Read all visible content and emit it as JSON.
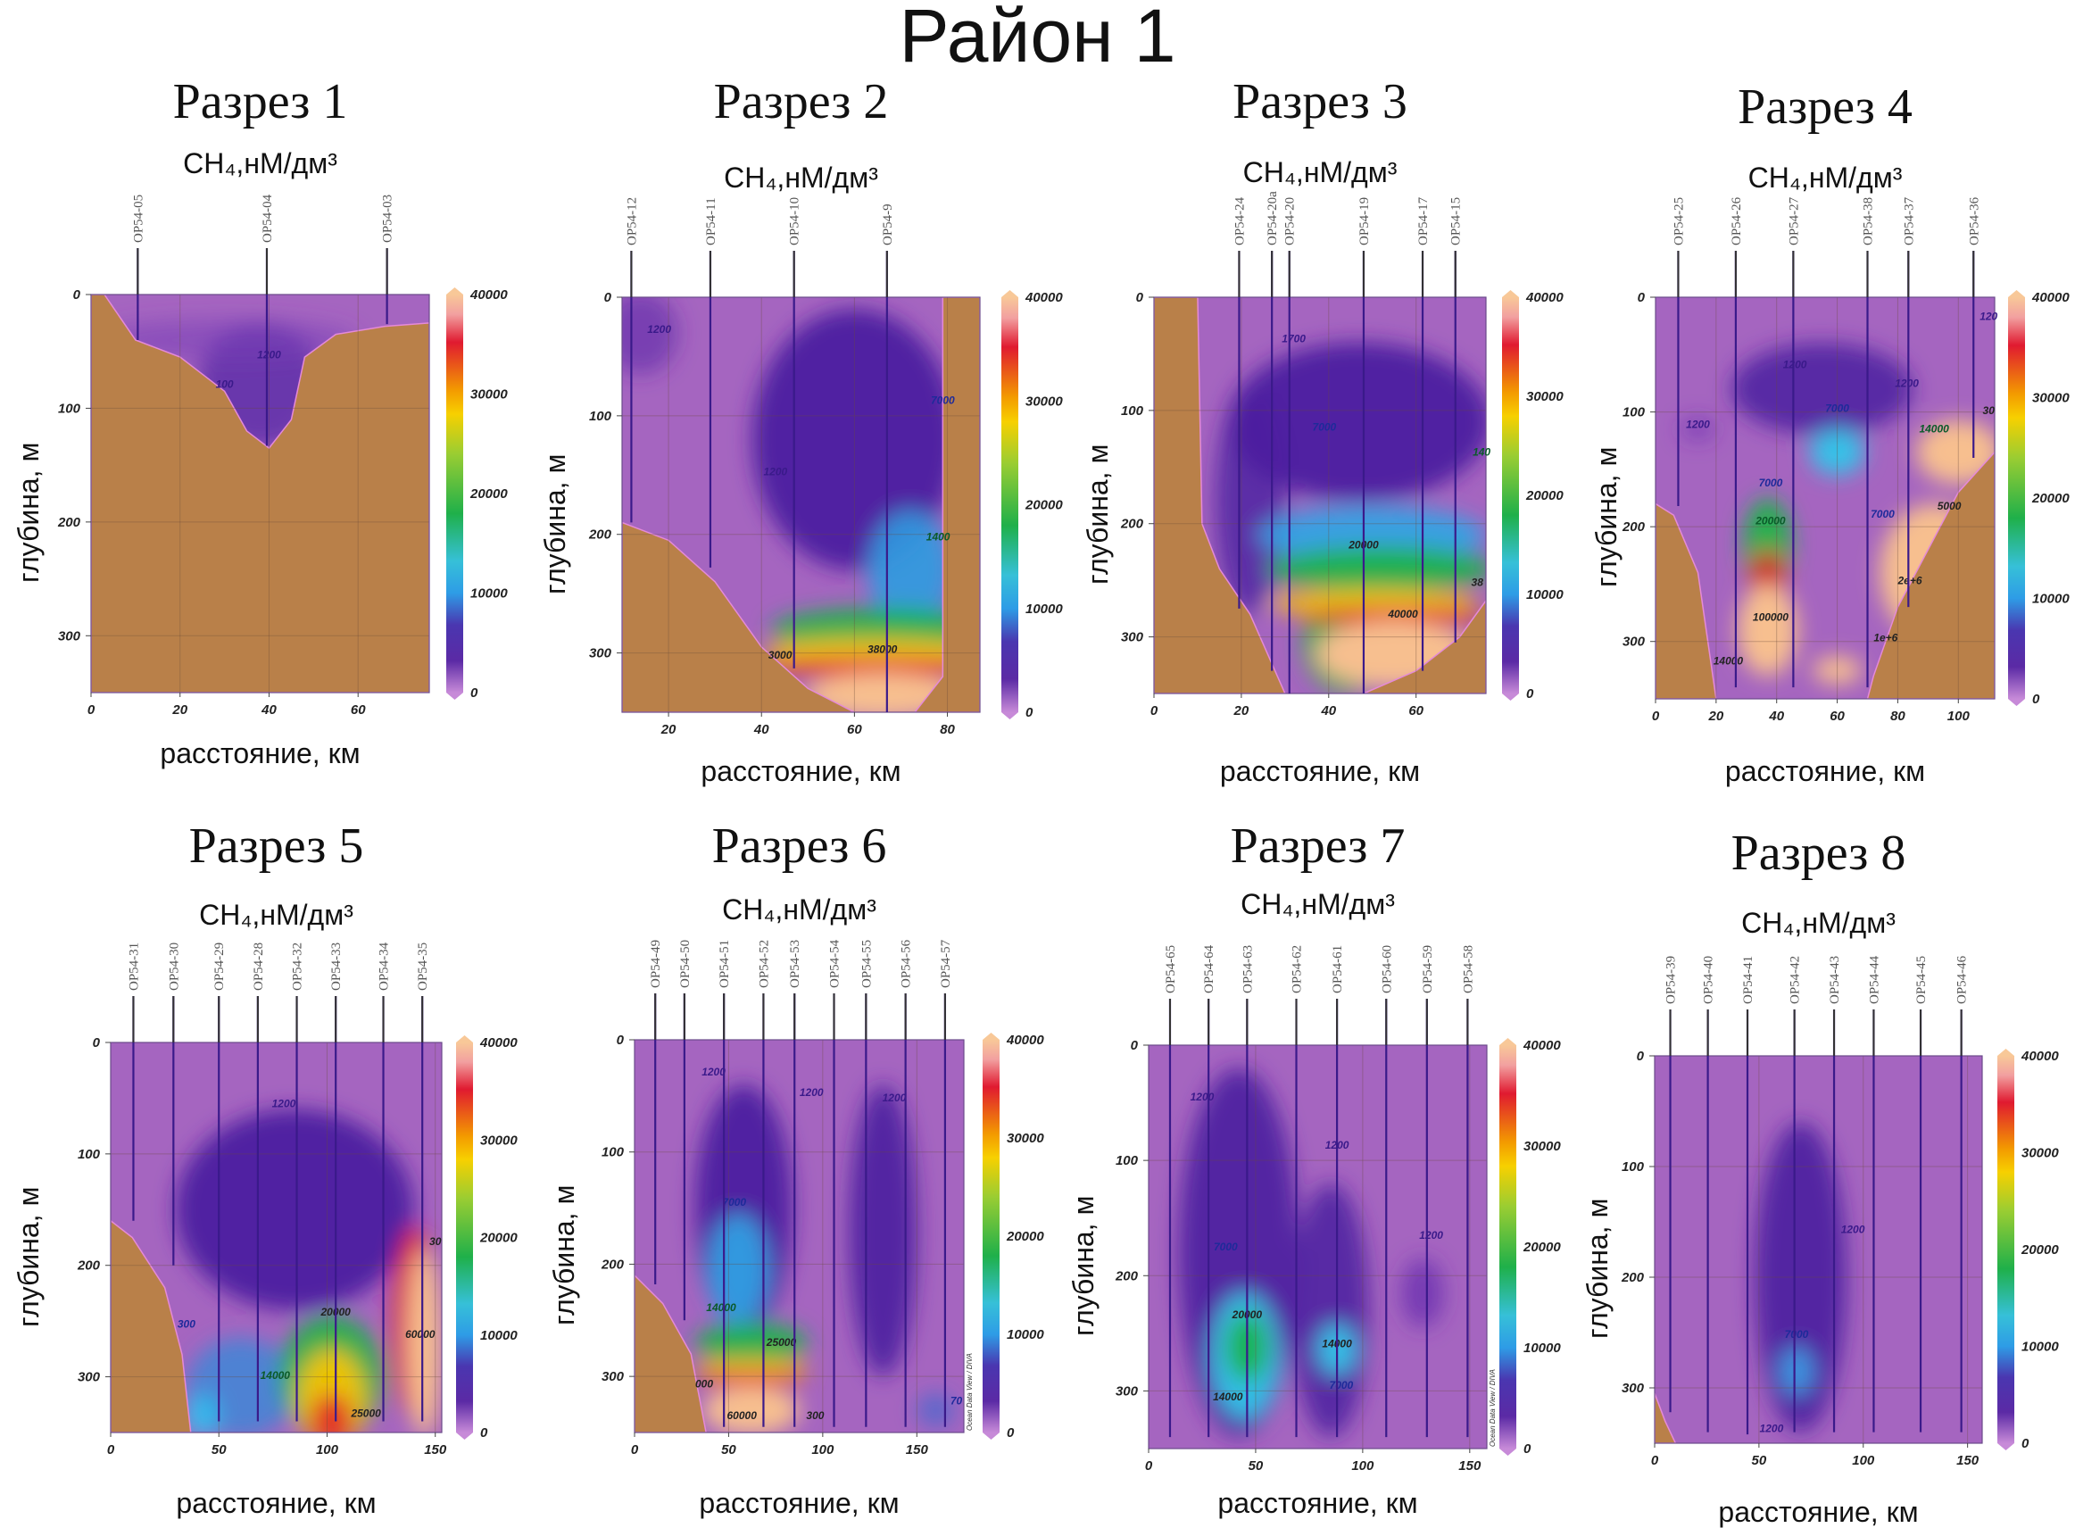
{
  "title": "Район 1",
  "colors": {
    "water_bg": "#a565c0",
    "land": "#b98049",
    "station_line": "#3a1a8a",
    "grid": "#6b4a3a"
  },
  "chart_data": [
    {
      "type": "heatmap",
      "title": "Разрез 1",
      "subtitle": "CH₄,нМ/дм³",
      "xlabel": "расстояние, км",
      "ylabel": "глубина, м",
      "xlim": [
        0,
        76
      ],
      "ylim": [
        350,
        0
      ],
      "xticks": [
        "0",
        "20",
        "40",
        "60"
      ],
      "xtick_values": [
        0,
        20,
        40,
        60
      ],
      "yticks": [
        "0",
        "100",
        "200",
        "300"
      ],
      "ytick_values": [
        0,
        100,
        200,
        300
      ],
      "colorbar": {
        "min": 0,
        "max": 40000,
        "ticks": [
          "0",
          "10000",
          "20000",
          "30000",
          "40000"
        ]
      },
      "stations": [
        {
          "name": "OP54-05",
          "km": 10.5,
          "bottom_m": 40
        },
        {
          "name": "OP54-04",
          "km": 39.5,
          "bottom_m": 133
        },
        {
          "name": "OP54-03",
          "km": 66.5,
          "bottom_m": 26
        }
      ],
      "contour_labels": [
        {
          "text": "1200",
          "km": 40,
          "m": 56,
          "color": "#3a1a8a"
        },
        {
          "text": "100",
          "km": 30,
          "m": 82,
          "color": "#3a1a8a"
        }
      ]
    },
    {
      "type": "heatmap",
      "title": "Разрез 2",
      "subtitle": "CH₄,нМ/дм³",
      "xlabel": "расстояние, км",
      "ylabel": "глубина, м",
      "xlim": [
        10,
        87
      ],
      "ylim": [
        350,
        0
      ],
      "xticks": [
        "20",
        "40",
        "60",
        "80"
      ],
      "xtick_values": [
        20,
        40,
        60,
        80
      ],
      "yticks": [
        "0",
        "100",
        "200",
        "300"
      ],
      "ytick_values": [
        0,
        100,
        200,
        300
      ],
      "colorbar": {
        "min": 0,
        "max": 40000,
        "ticks": [
          "0",
          "10000",
          "20000",
          "30000",
          "40000"
        ]
      },
      "stations": [
        {
          "name": "OP54-12",
          "km": 12,
          "bottom_m": 190
        },
        {
          "name": "OP54-11",
          "km": 29,
          "bottom_m": 228
        },
        {
          "name": "OP54-10",
          "km": 47,
          "bottom_m": 313
        },
        {
          "name": "OP54-9",
          "km": 67,
          "bottom_m": 350
        }
      ],
      "contour_labels": [
        {
          "text": "1200",
          "km": 18,
          "m": 30,
          "color": "#3a1a8a"
        },
        {
          "text": "1200",
          "km": 43,
          "m": 150,
          "color": "#3a1a8a"
        },
        {
          "text": "7000",
          "km": 79,
          "m": 90,
          "color": "#1e2a9a"
        },
        {
          "text": "1400",
          "km": 78,
          "m": 205,
          "color": "#0a5a2a"
        },
        {
          "text": "3000",
          "km": 44,
          "m": 305,
          "color": "#222222"
        },
        {
          "text": "38000",
          "km": 66,
          "m": 300,
          "color": "#222222"
        }
      ]
    },
    {
      "type": "heatmap",
      "title": "Разрез 3",
      "subtitle": "CH₄,нМ/дм³",
      "xlabel": "расстояние, км",
      "ylabel": "глубина, м",
      "xlim": [
        0,
        76
      ],
      "ylim": [
        350,
        0
      ],
      "xticks": [
        "0",
        "20",
        "40",
        "60"
      ],
      "xtick_values": [
        0,
        20,
        40,
        60
      ],
      "yticks": [
        "0",
        "100",
        "200",
        "300"
      ],
      "ytick_values": [
        0,
        100,
        200,
        300
      ],
      "colorbar": {
        "min": 0,
        "max": 40000,
        "ticks": [
          "0",
          "10000",
          "20000",
          "30000",
          "40000"
        ]
      },
      "stations": [
        {
          "name": "OP54-24",
          "km": 19.5,
          "bottom_m": 275
        },
        {
          "name": "OP54-20a",
          "km": 27,
          "bottom_m": 330
        },
        {
          "name": "OP54-20",
          "km": 31,
          "bottom_m": 350
        },
        {
          "name": "OP54-19",
          "km": 48,
          "bottom_m": 350
        },
        {
          "name": "OP54-17",
          "km": 61.5,
          "bottom_m": 330
        },
        {
          "name": "OP54-15",
          "km": 69,
          "bottom_m": 305
        }
      ],
      "contour_labels": [
        {
          "text": "1700",
          "km": 32,
          "m": 40,
          "color": "#3a1a8a"
        },
        {
          "text": "7000",
          "km": 39,
          "m": 118,
          "color": "#1e2a9a"
        },
        {
          "text": "140",
          "km": 75,
          "m": 140,
          "color": "#0a5a2a"
        },
        {
          "text": "20000",
          "km": 48,
          "m": 222,
          "color": "#222222"
        },
        {
          "text": "40000",
          "km": 57,
          "m": 283,
          "color": "#222222"
        },
        {
          "text": "38",
          "km": 74,
          "m": 255,
          "color": "#222222"
        }
      ]
    },
    {
      "type": "heatmap",
      "title": "Разрез 4",
      "subtitle": "CH₄,нМ/дм³",
      "xlabel": "расстояние, км",
      "ylabel": "глубина, м",
      "xlim": [
        0,
        112
      ],
      "ylim": [
        350,
        0
      ],
      "xticks": [
        "0",
        "20",
        "40",
        "60",
        "80",
        "100"
      ],
      "xtick_values": [
        0,
        20,
        40,
        60,
        80,
        100
      ],
      "yticks": [
        "0",
        "100",
        "200",
        "300"
      ],
      "ytick_values": [
        0,
        100,
        200,
        300
      ],
      "colorbar": {
        "min": 0,
        "max": 40000,
        "ticks": [
          "0",
          "10000",
          "20000",
          "30000",
          "40000"
        ]
      },
      "stations": [
        {
          "name": "OP54-25",
          "km": 7.5,
          "bottom_m": 182
        },
        {
          "name": "OP54-26",
          "km": 26.5,
          "bottom_m": 340
        },
        {
          "name": "OP54-27",
          "km": 45.5,
          "bottom_m": 340
        },
        {
          "name": "OP54-38",
          "km": 70,
          "bottom_m": 340
        },
        {
          "name": "OP54-37",
          "km": 83.5,
          "bottom_m": 270
        },
        {
          "name": "OP54-36",
          "km": 105,
          "bottom_m": 140
        }
      ],
      "contour_labels": [
        {
          "text": "1200",
          "km": 14,
          "m": 114,
          "color": "#3a1a8a"
        },
        {
          "text": "1200",
          "km": 46,
          "m": 62,
          "color": "#3a1a8a"
        },
        {
          "text": "1200",
          "km": 83,
          "m": 78,
          "color": "#3a1a8a"
        },
        {
          "text": "120",
          "km": 110,
          "m": 20,
          "color": "#3a1a8a"
        },
        {
          "text": "7000",
          "km": 60,
          "m": 100,
          "color": "#1e2a9a"
        },
        {
          "text": "7000",
          "km": 38,
          "m": 165,
          "color": "#1e2a9a"
        },
        {
          "text": "20000",
          "km": 38,
          "m": 198,
          "color": "#0a5a2a"
        },
        {
          "text": "100000",
          "km": 38,
          "m": 282,
          "color": "#222222"
        },
        {
          "text": "14000",
          "km": 24,
          "m": 320,
          "color": "#222222"
        },
        {
          "text": "7000",
          "km": 75,
          "m": 192,
          "color": "#1e2a9a"
        },
        {
          "text": "14000",
          "km": 92,
          "m": 118,
          "color": "#0a5a2a"
        },
        {
          "text": "30",
          "km": 110,
          "m": 102,
          "color": "#222222"
        },
        {
          "text": "5000",
          "km": 97,
          "m": 185,
          "color": "#222222"
        },
        {
          "text": "2e+6",
          "km": 84,
          "m": 250,
          "color": "#222222"
        },
        {
          "text": "1e+6",
          "km": 76,
          "m": 300,
          "color": "#222222"
        }
      ]
    },
    {
      "type": "heatmap",
      "title": "Разрез 5",
      "subtitle": "CH₄,нМ/дм³",
      "xlabel": "расстояние, км",
      "ylabel": "глубина, м",
      "xlim": [
        0,
        153
      ],
      "ylim": [
        350,
        0
      ],
      "xticks": [
        "0",
        "50",
        "100",
        "150"
      ],
      "xtick_values": [
        0,
        50,
        100,
        150
      ],
      "yticks": [
        "0",
        "100",
        "200",
        "300"
      ],
      "ytick_values": [
        0,
        100,
        200,
        300
      ],
      "colorbar": {
        "min": 0,
        "max": 40000,
        "ticks": [
          "0",
          "10000",
          "20000",
          "30000",
          "40000"
        ]
      },
      "stations": [
        {
          "name": "OP54-31",
          "km": 10.5,
          "bottom_m": 160
        },
        {
          "name": "OP54-30",
          "km": 29,
          "bottom_m": 200
        },
        {
          "name": "OP54-29",
          "km": 50,
          "bottom_m": 340
        },
        {
          "name": "OP54-28",
          "km": 68,
          "bottom_m": 340
        },
        {
          "name": "OP54-32",
          "km": 86,
          "bottom_m": 340
        },
        {
          "name": "OP54-33",
          "km": 104,
          "bottom_m": 340
        },
        {
          "name": "OP54-34",
          "km": 126,
          "bottom_m": 340
        },
        {
          "name": "OP54-35",
          "km": 144,
          "bottom_m": 340
        }
      ],
      "contour_labels": [
        {
          "text": "1200",
          "km": 80,
          "m": 58,
          "color": "#3a1a8a"
        },
        {
          "text": "300",
          "km": 35,
          "m": 256,
          "color": "#1e2a9a"
        },
        {
          "text": "14000",
          "km": 76,
          "m": 302,
          "color": "#0a5a2a"
        },
        {
          "text": "20000",
          "km": 104,
          "m": 245,
          "color": "#222222"
        },
        {
          "text": "25000",
          "km": 118,
          "m": 336,
          "color": "#222222"
        },
        {
          "text": "60000",
          "km": 143,
          "m": 265,
          "color": "#222222"
        },
        {
          "text": "30",
          "km": 150,
          "m": 182,
          "color": "#222222"
        }
      ]
    },
    {
      "type": "heatmap",
      "title": "Разрез 6",
      "subtitle": "CH₄,нМ/дм³",
      "xlabel": "расстояние, км",
      "ylabel": "глубина, м",
      "xlim": [
        0,
        175
      ],
      "ylim": [
        350,
        0
      ],
      "xticks": [
        "0",
        "50",
        "100",
        "150"
      ],
      "xtick_values": [
        0,
        50,
        100,
        150
      ],
      "yticks": [
        "0",
        "100",
        "200",
        "300"
      ],
      "ytick_values": [
        0,
        100,
        200,
        300
      ],
      "colorbar": {
        "min": 0,
        "max": 40000,
        "ticks": [
          "0",
          "10000",
          "20000",
          "30000",
          "40000"
        ]
      },
      "watermark": "Ocean Data View / DIVA",
      "stations": [
        {
          "name": "OP54-49",
          "km": 11,
          "bottom_m": 218
        },
        {
          "name": "OP54-50",
          "km": 26.5,
          "bottom_m": 250
        },
        {
          "name": "OP54-51",
          "km": 47.5,
          "bottom_m": 345
        },
        {
          "name": "OP54-52",
          "km": 68.5,
          "bottom_m": 345
        },
        {
          "name": "OP54-53",
          "km": 85,
          "bottom_m": 345
        },
        {
          "name": "OP54-54",
          "km": 106,
          "bottom_m": 345
        },
        {
          "name": "OP54-55",
          "km": 123,
          "bottom_m": 345
        },
        {
          "name": "OP54-56",
          "km": 144,
          "bottom_m": 345
        },
        {
          "name": "OP54-57",
          "km": 165,
          "bottom_m": 345
        }
      ],
      "contour_labels": [
        {
          "text": "1200",
          "km": 42,
          "m": 32,
          "color": "#3a1a8a"
        },
        {
          "text": "1200",
          "km": 94,
          "m": 50,
          "color": "#3a1a8a"
        },
        {
          "text": "1200",
          "km": 138,
          "m": 55,
          "color": "#3a1a8a"
        },
        {
          "text": "7000",
          "km": 53,
          "m": 148,
          "color": "#1e2a9a"
        },
        {
          "text": "14000",
          "km": 46,
          "m": 242,
          "color": "#0a5a2a"
        },
        {
          "text": "25000",
          "km": 78,
          "m": 273,
          "color": "#222222"
        },
        {
          "text": "000",
          "km": 37,
          "m": 310,
          "color": "#222222"
        },
        {
          "text": "60000",
          "km": 57,
          "m": 338,
          "color": "#222222"
        },
        {
          "text": "300",
          "km": 96,
          "m": 338,
          "color": "#222222"
        },
        {
          "text": "70",
          "km": 171,
          "m": 325,
          "color": "#1e2a9a"
        }
      ]
    },
    {
      "type": "heatmap",
      "title": "Разрез 7",
      "subtitle": "CH₄,нМ/дм³",
      "xlabel": "расстояние, км",
      "ylabel": "глубина, м",
      "xlim": [
        0,
        158
      ],
      "ylim": [
        350,
        0
      ],
      "xticks": [
        "0",
        "50",
        "100",
        "150"
      ],
      "xtick_values": [
        0,
        50,
        100,
        150
      ],
      "yticks": [
        "0",
        "100",
        "200",
        "300"
      ],
      "ytick_values": [
        0,
        100,
        200,
        300
      ],
      "colorbar": {
        "min": 0,
        "max": 40000,
        "ticks": [
          "0",
          "10000",
          "20000",
          "30000",
          "40000"
        ]
      },
      "watermark": "Ocean Data View / DIVA",
      "stations": [
        {
          "name": "OP54-65",
          "km": 10,
          "bottom_m": 340
        },
        {
          "name": "OP54-64",
          "km": 28,
          "bottom_m": 340
        },
        {
          "name": "OP54-63",
          "km": 46,
          "bottom_m": 340
        },
        {
          "name": "OP54-62",
          "km": 69,
          "bottom_m": 340
        },
        {
          "name": "OP54-61",
          "km": 88,
          "bottom_m": 340
        },
        {
          "name": "OP54-60",
          "km": 111,
          "bottom_m": 340
        },
        {
          "name": "OP54-59",
          "km": 130,
          "bottom_m": 340
        },
        {
          "name": "OP54-58",
          "km": 149,
          "bottom_m": 340
        }
      ],
      "contour_labels": [
        {
          "text": "1200",
          "km": 25,
          "m": 48,
          "color": "#3a1a8a"
        },
        {
          "text": "1200",
          "km": 88,
          "m": 90,
          "color": "#3a1a8a"
        },
        {
          "text": "1200",
          "km": 132,
          "m": 168,
          "color": "#3a1a8a"
        },
        {
          "text": "7000",
          "km": 36,
          "m": 178,
          "color": "#1e2a9a"
        },
        {
          "text": "20000",
          "km": 46,
          "m": 237,
          "color": "#222222"
        },
        {
          "text": "14000",
          "km": 88,
          "m": 262,
          "color": "#222222"
        },
        {
          "text": "14000",
          "km": 37,
          "m": 308,
          "color": "#222222"
        },
        {
          "text": "7000",
          "km": 90,
          "m": 298,
          "color": "#1e2a9a"
        }
      ]
    },
    {
      "type": "heatmap",
      "title": "Разрез 8",
      "subtitle": "CH₄,нМ/дм³",
      "xlabel": "расстояние, км",
      "ylabel": "глубина, м",
      "xlim": [
        0,
        157
      ],
      "ylim": [
        350,
        0
      ],
      "xticks": [
        "0",
        "50",
        "100",
        "150"
      ],
      "xtick_values": [
        0,
        50,
        100,
        150
      ],
      "yticks": [
        "0",
        "100",
        "200",
        "300"
      ],
      "ytick_values": [
        0,
        100,
        200,
        300
      ],
      "colorbar": {
        "min": 0,
        "max": 40000,
        "ticks": [
          "0",
          "10000",
          "20000",
          "30000",
          "40000"
        ]
      },
      "stations": [
        {
          "name": "OP54-39",
          "km": 7.5,
          "bottom_m": 322
        },
        {
          "name": "OP54-40",
          "km": 25.5,
          "bottom_m": 340
        },
        {
          "name": "OP54-41",
          "km": 44.5,
          "bottom_m": 342
        },
        {
          "name": "OP54-42",
          "km": 67,
          "bottom_m": 340
        },
        {
          "name": "OP54-43",
          "km": 86,
          "bottom_m": 340
        },
        {
          "name": "OP54-44",
          "km": 105,
          "bottom_m": 340
        },
        {
          "name": "OP54-45",
          "km": 127.5,
          "bottom_m": 340
        },
        {
          "name": "OP54-46",
          "km": 147,
          "bottom_m": 340
        }
      ],
      "contour_labels": [
        {
          "text": "1200",
          "km": 95,
          "m": 160,
          "color": "#3a1a8a"
        },
        {
          "text": "7000",
          "km": 68,
          "m": 255,
          "color": "#1e2a9a"
        },
        {
          "text": "1200",
          "km": 56,
          "m": 340,
          "color": "#3a1a8a"
        }
      ]
    }
  ]
}
